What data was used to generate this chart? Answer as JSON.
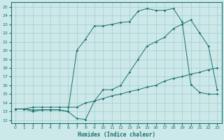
{
  "xlabel": "Humidex (Indice chaleur)",
  "bg_color": "#cce8e8",
  "line_color": "#1a7070",
  "grid_color": "#a8cccc",
  "xlim": [
    -0.5,
    23.5
  ],
  "ylim": [
    11.7,
    25.5
  ],
  "xticks": [
    0,
    1,
    2,
    3,
    4,
    5,
    6,
    7,
    8,
    9,
    10,
    11,
    12,
    13,
    14,
    15,
    16,
    17,
    18,
    19,
    20,
    21,
    22,
    23
  ],
  "yticks": [
    12,
    13,
    14,
    15,
    16,
    17,
    18,
    19,
    20,
    21,
    22,
    23,
    24,
    25
  ],
  "curve1": {
    "x": [
      0,
      1,
      2,
      3,
      4,
      5,
      6,
      7,
      8,
      9,
      10,
      11,
      12,
      13,
      14,
      15,
      16,
      17,
      18,
      19,
      20,
      21,
      22,
      23
    ],
    "y": [
      13.3,
      13.3,
      13.0,
      13.2,
      13.2,
      13.2,
      13.0,
      12.2,
      12.1,
      14.2,
      15.5,
      15.5,
      16.0,
      17.5,
      19.0,
      20.5,
      21.0,
      21.5,
      22.5,
      23.0,
      23.5,
      22.0,
      20.5,
      15.5
    ]
  },
  "curve2": {
    "x": [
      0,
      1,
      2,
      3,
      4,
      5,
      6,
      7,
      8,
      9,
      10,
      11,
      12,
      13,
      14,
      15,
      16,
      17,
      18,
      19,
      20,
      21,
      22,
      23
    ],
    "y": [
      13.3,
      13.3,
      13.2,
      13.2,
      13.2,
      13.2,
      13.0,
      20.0,
      21.3,
      22.8,
      22.8,
      23.0,
      23.2,
      23.3,
      24.5,
      24.8,
      24.6,
      24.6,
      24.8,
      23.3,
      16.1,
      15.2,
      15.0,
      15.0
    ]
  },
  "curve3": {
    "x": [
      0,
      1,
      2,
      3,
      4,
      5,
      6,
      7,
      8,
      9,
      10,
      11,
      12,
      13,
      14,
      15,
      16,
      17,
      18,
      19,
      20,
      21,
      22,
      23
    ],
    "y": [
      13.3,
      13.3,
      13.5,
      13.5,
      13.5,
      13.5,
      13.5,
      13.5,
      14.0,
      14.2,
      14.5,
      14.8,
      15.0,
      15.3,
      15.5,
      15.8,
      16.0,
      16.5,
      16.8,
      17.0,
      17.3,
      17.5,
      17.8,
      18.0
    ]
  }
}
